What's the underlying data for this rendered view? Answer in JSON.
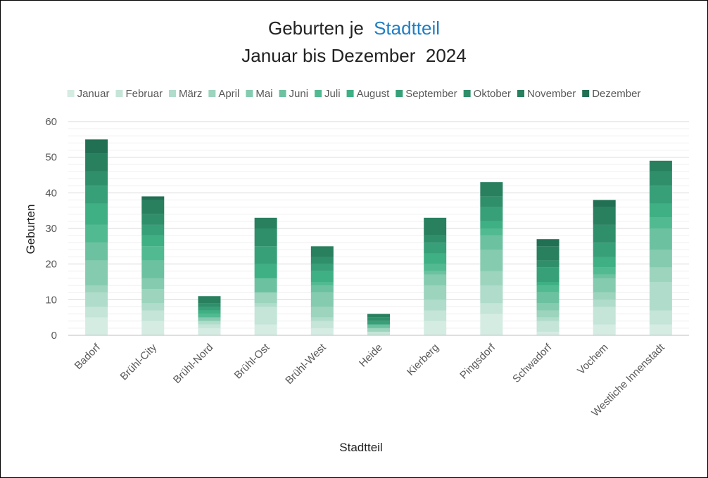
{
  "chart_data": {
    "type": "bar",
    "stacked": true,
    "title": {
      "line1_prefix": "Geburten je",
      "line1_highlight": "Stadtteil",
      "line2": "Januar bis Dezember  2024"
    },
    "highlight_color": "#1F7EC2",
    "xlabel": "Stadtteil",
    "ylabel": "Geburten",
    "ylim": [
      0,
      60
    ],
    "yticks": [
      0,
      10,
      20,
      30,
      40,
      50,
      60
    ],
    "grid": true,
    "legend_position": "top",
    "categories": [
      "Badorf",
      "Brühl-City",
      "Brühl-Nord",
      "Brühl-Ost",
      "Brühl-West",
      "Heide",
      "Kierberg",
      "Pingsdorf",
      "Schwadorf",
      "Vochem",
      "Westliche Innenstadt"
    ],
    "series": [
      {
        "name": "Januar",
        "color": "#d5ece3",
        "values": [
          5,
          4,
          2,
          3,
          2,
          0,
          4,
          6,
          1,
          3,
          3
        ]
      },
      {
        "name": "Februar",
        "color": "#c4e5d8",
        "values": [
          3,
          3,
          1,
          5,
          2,
          1,
          3,
          3,
          3,
          5,
          4
        ]
      },
      {
        "name": "März",
        "color": "#b0dccb",
        "values": [
          4,
          2,
          1,
          1,
          1,
          0,
          3,
          5,
          1,
          2,
          8
        ]
      },
      {
        "name": "April",
        "color": "#9cd4bd",
        "values": [
          2,
          4,
          0,
          3,
          3,
          1,
          4,
          4,
          2,
          2,
          4
        ]
      },
      {
        "name": "Mai",
        "color": "#85cbb0",
        "values": [
          7,
          3,
          1,
          0,
          4,
          0,
          3,
          6,
          2,
          4,
          5
        ]
      },
      {
        "name": "Juni",
        "color": "#6cc2a0",
        "values": [
          5,
          5,
          0,
          4,
          2,
          1,
          1,
          4,
          3,
          1,
          6
        ]
      },
      {
        "name": "Juli",
        "color": "#52ba91",
        "values": [
          5,
          4,
          1,
          0,
          1,
          0,
          2,
          2,
          2,
          2,
          3
        ]
      },
      {
        "name": "August",
        "color": "#3fb083",
        "values": [
          6,
          3,
          1,
          4,
          3,
          0,
          3,
          2,
          1,
          3,
          4
        ]
      },
      {
        "name": "September",
        "color": "#37a079",
        "values": [
          5,
          3,
          1,
          5,
          2,
          1,
          3,
          4,
          4,
          4,
          5
        ]
      },
      {
        "name": "Oktober",
        "color": "#2f8f6b",
        "values": [
          4,
          3,
          1,
          5,
          2,
          1,
          2,
          3,
          2,
          5,
          4
        ]
      },
      {
        "name": "November",
        "color": "#28805f",
        "values": [
          5,
          4,
          2,
          3,
          3,
          1,
          5,
          4,
          4,
          5,
          3
        ]
      },
      {
        "name": "Dezember",
        "color": "#217053",
        "values": [
          4,
          1,
          0,
          0,
          0,
          0,
          0,
          0,
          2,
          2,
          0
        ]
      }
    ]
  }
}
